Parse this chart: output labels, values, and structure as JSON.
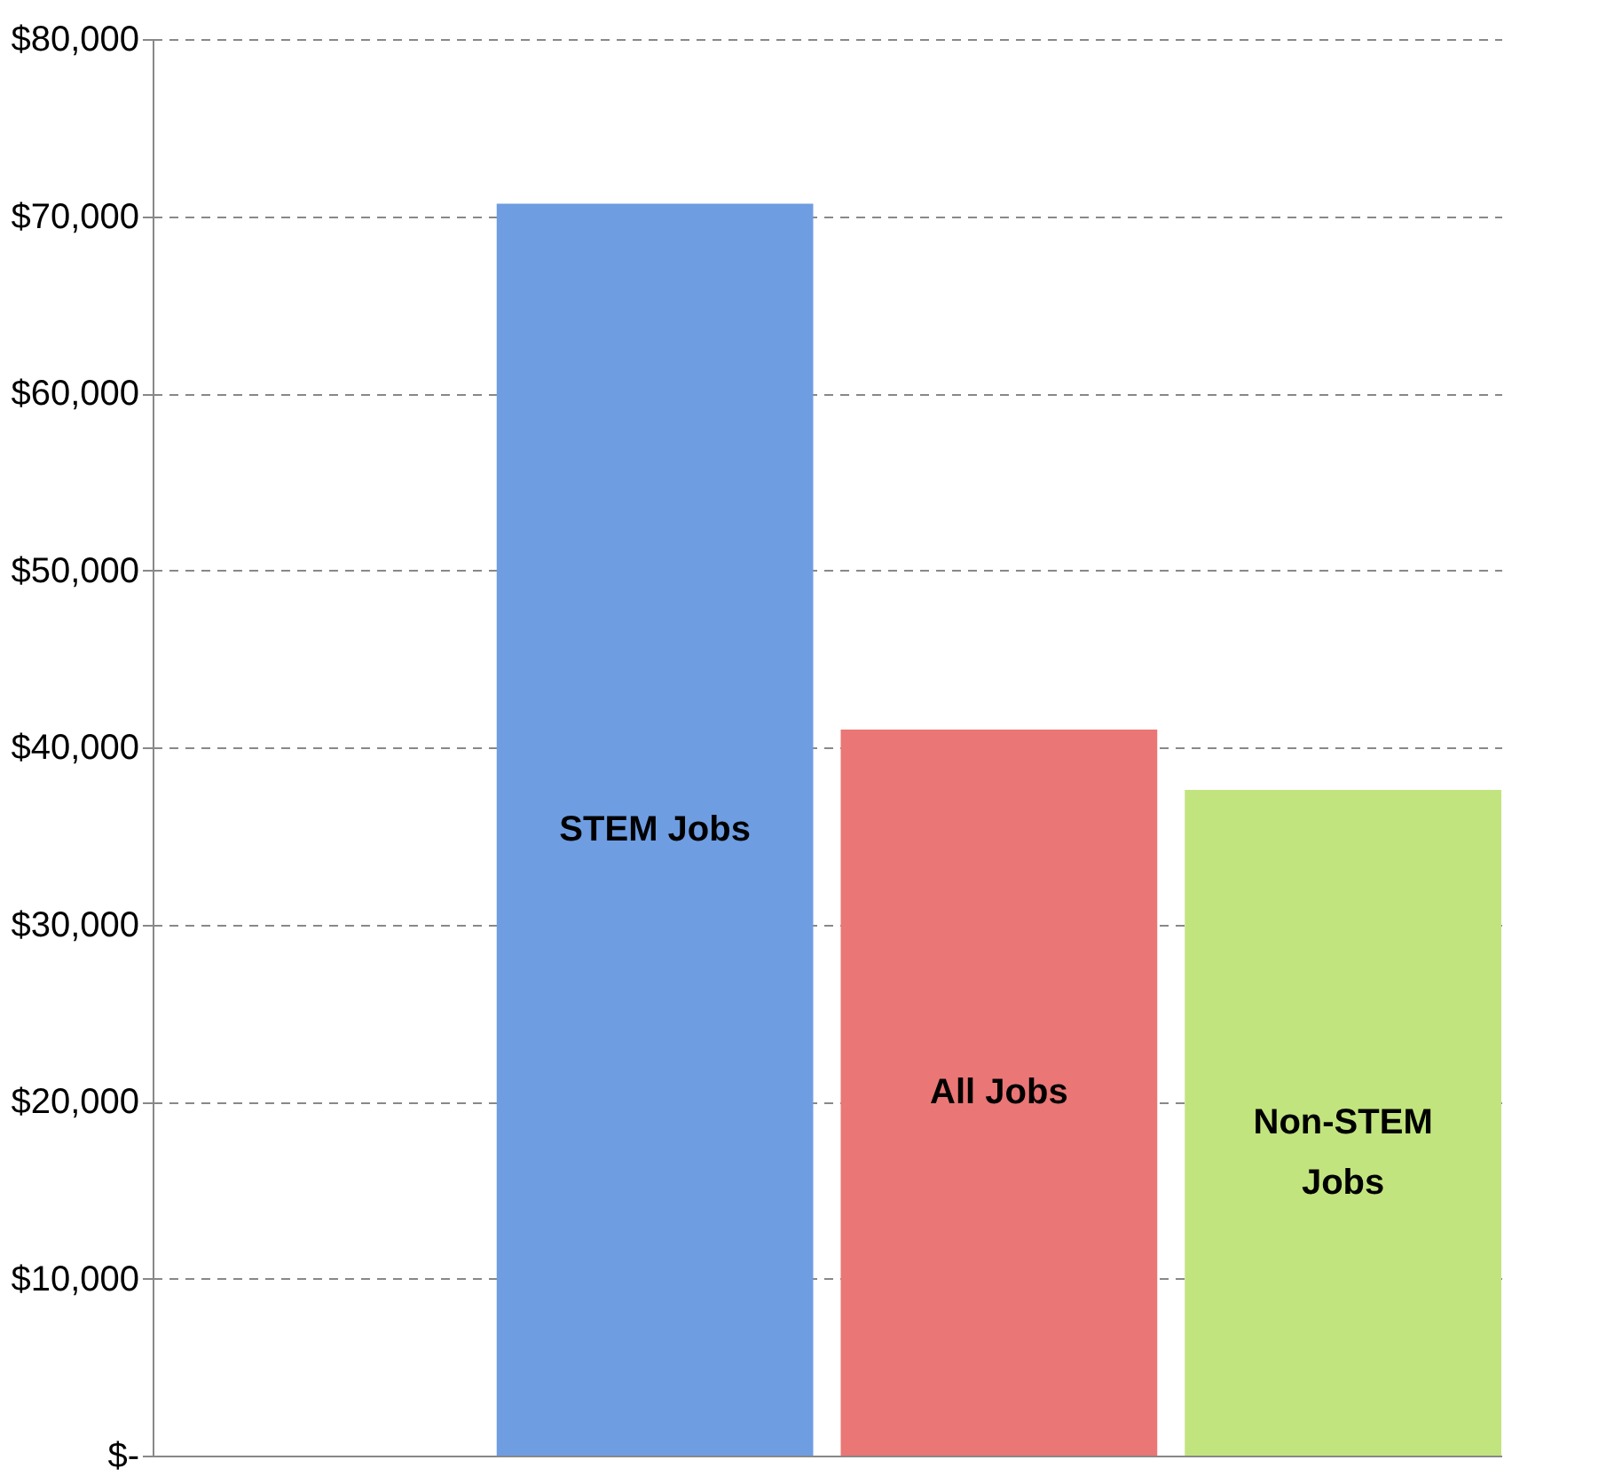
{
  "chart_data": {
    "type": "bar",
    "categories": [
      "STEM Jobs",
      "All Jobs",
      "Non-STEM Jobs"
    ],
    "values": [
      70700,
      41000,
      37600
    ],
    "colors": [
      "#6e9de2",
      "#ea7676",
      "#c2e47e"
    ],
    "ylim": [
      0,
      80000
    ],
    "yticks": [
      {
        "value": 0,
        "label": "$-"
      },
      {
        "value": 10000,
        "label": "$10,000"
      },
      {
        "value": 20000,
        "label": "$20,000"
      },
      {
        "value": 30000,
        "label": "$30,000"
      },
      {
        "value": 40000,
        "label": "$40,000"
      },
      {
        "value": 50000,
        "label": "$50,000"
      },
      {
        "value": 60000,
        "label": "$60,000"
      },
      {
        "value": 70000,
        "label": "$70,000"
      },
      {
        "value": 80000,
        "label": "$80,000"
      }
    ],
    "grid": "y",
    "tick_labels": "y"
  }
}
